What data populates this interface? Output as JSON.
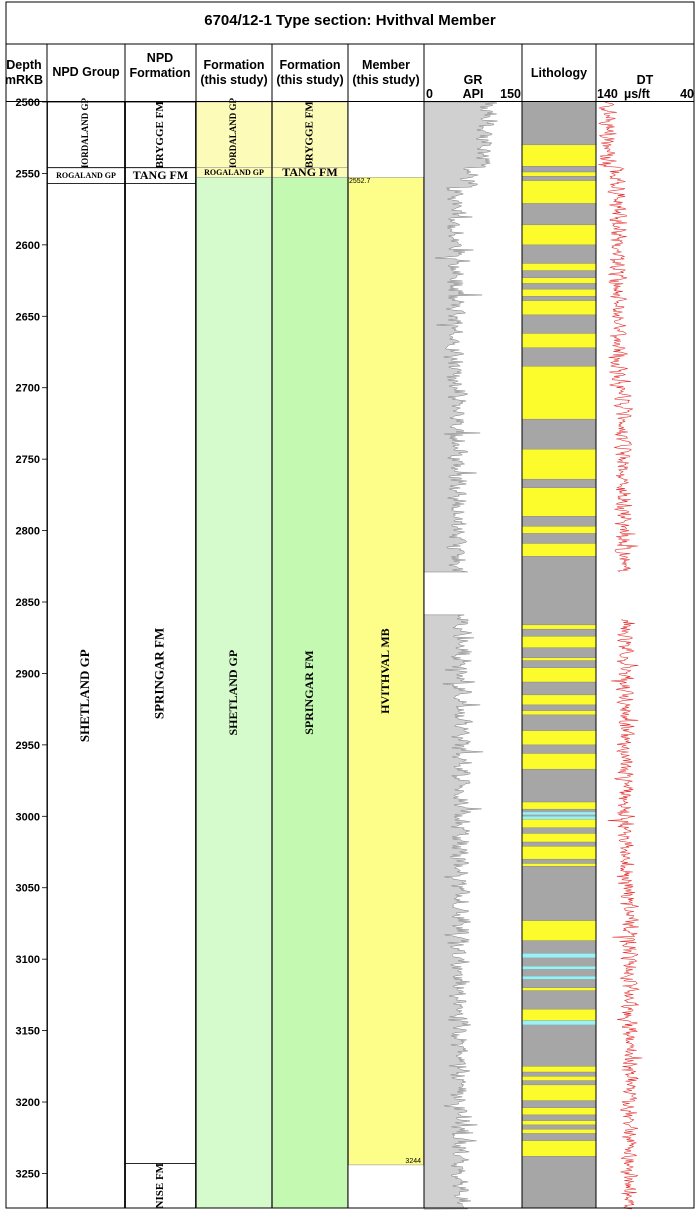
{
  "title": "6704/12-1  Type section: Hvithval  Member",
  "headers": {
    "depth": [
      "Depth",
      "mRKB"
    ],
    "npd_group": [
      "NPD Group"
    ],
    "npd_formation": [
      "NPD",
      "Formation"
    ],
    "formation_group": [
      "Formation",
      "(this study)"
    ],
    "formation_fm": [
      "Formation",
      "(this study)"
    ],
    "member": [
      "Member",
      "(this study)"
    ],
    "gr": [
      "GR",
      "API"
    ],
    "gr_min": "0",
    "gr_max": "150",
    "lithology": [
      "Lithology"
    ],
    "dt": [
      "DT",
      "µs/ft"
    ],
    "dt_left": "140",
    "dt_right": "40"
  },
  "depth_ticks": [
    2500,
    2550,
    2600,
    2650,
    2700,
    2750,
    2800,
    2850,
    2900,
    2950,
    3000,
    3050,
    3100,
    3150,
    3200,
    3250
  ],
  "depth_range": [
    2500,
    3275
  ],
  "colors": {
    "hordaland_bg": "#fdfbb8",
    "shetland_green": "#d5fbcc",
    "springar_green": "#c4f9b2",
    "member_yellow": "#fdfd8a",
    "litho_gray": "#a6a6a6",
    "litho_yellow": "#fcfc2c",
    "litho_cyan": "#9ef0f5",
    "gr_fill": "#d0d0d0",
    "dt_line": "#e53030"
  },
  "units": {
    "npd_group": [
      {
        "label": "HORDALAND GP",
        "top": 2500,
        "base": 2546,
        "vertical": true
      },
      {
        "label": "ROGALAND GP",
        "top": 2546,
        "base": 2557,
        "vertical": false
      },
      {
        "label": "SHETLAND GP",
        "top": 2557,
        "base": 3275,
        "vertical": true
      }
    ],
    "npd_formation": [
      {
        "label": "BRYGGE FM",
        "top": 2500,
        "base": 2546,
        "vertical": true
      },
      {
        "label": "TANG FM",
        "top": 2546,
        "base": 2557,
        "vertical": false
      },
      {
        "label": "SPRINGAR FM",
        "top": 2557,
        "base": 3243,
        "vertical": true
      },
      {
        "label": "NISE FM",
        "top": 3243,
        "base": 3275,
        "vertical": true
      }
    ],
    "formation_group": [
      {
        "label": "HORDALAND GP",
        "top": 2500,
        "base": 2546,
        "vertical": true
      },
      {
        "label": "ROGALAND GP",
        "top": 2546,
        "base": 2552.7,
        "vertical": false
      },
      {
        "label": "SHETLAND GP",
        "top": 2552.7,
        "base": 3275,
        "vertical": true
      }
    ],
    "formation_fm": [
      {
        "label": "BRYGGE FM",
        "top": 2500,
        "base": 2546,
        "vertical": true
      },
      {
        "label": "TANG FM",
        "top": 2546,
        "base": 2552.7,
        "vertical": false
      },
      {
        "label": "SPRINGAR FM",
        "top": 2552.7,
        "base": 3275,
        "vertical": true
      }
    ],
    "member": [
      {
        "label": "HVITHVAL MB",
        "top": 2552.7,
        "base": 3244,
        "vertical": true
      }
    ]
  },
  "member_top_label": "2552.7",
  "member_base_label": "3244",
  "lithology_sand_intervals": [
    [
      2530,
      2545
    ],
    [
      2549,
      2552
    ],
    [
      2555,
      2571
    ],
    [
      2586,
      2600
    ],
    [
      2613,
      2618
    ],
    [
      2623,
      2627
    ],
    [
      2631,
      2636
    ],
    [
      2639,
      2649
    ],
    [
      2662,
      2672
    ],
    [
      2685,
      2722
    ],
    [
      2743,
      2764
    ],
    [
      2770,
      2790
    ],
    [
      2797,
      2802
    ],
    [
      2809,
      2818
    ],
    [
      2866,
      2869
    ],
    [
      2874,
      2882
    ],
    [
      2889,
      2891
    ],
    [
      2896,
      2906
    ],
    [
      2915,
      2922
    ],
    [
      2926,
      2929
    ],
    [
      2940,
      2950
    ],
    [
      2956,
      2967
    ],
    [
      2990,
      2995
    ],
    [
      3002,
      3008
    ],
    [
      3012,
      3018
    ],
    [
      3021,
      3030
    ],
    [
      3033,
      3035
    ],
    [
      3073,
      3087
    ],
    [
      3120,
      3122
    ],
    [
      3135,
      3143
    ],
    [
      3175,
      3179
    ],
    [
      3182,
      3185
    ],
    [
      3188,
      3199
    ],
    [
      3204,
      3209
    ],
    [
      3213,
      3216
    ],
    [
      3219,
      3222
    ],
    [
      3227,
      3238
    ]
  ],
  "lithology_cyan_intervals": [
    [
      2997,
      2999
    ],
    [
      3000,
      3002
    ],
    [
      3096,
      3099
    ],
    [
      3105,
      3107
    ],
    [
      3112,
      3114
    ],
    [
      3143,
      3146
    ]
  ],
  "gr_gap": [
    2829,
    2859
  ],
  "dt_gap": [
    2829,
    2862
  ]
}
